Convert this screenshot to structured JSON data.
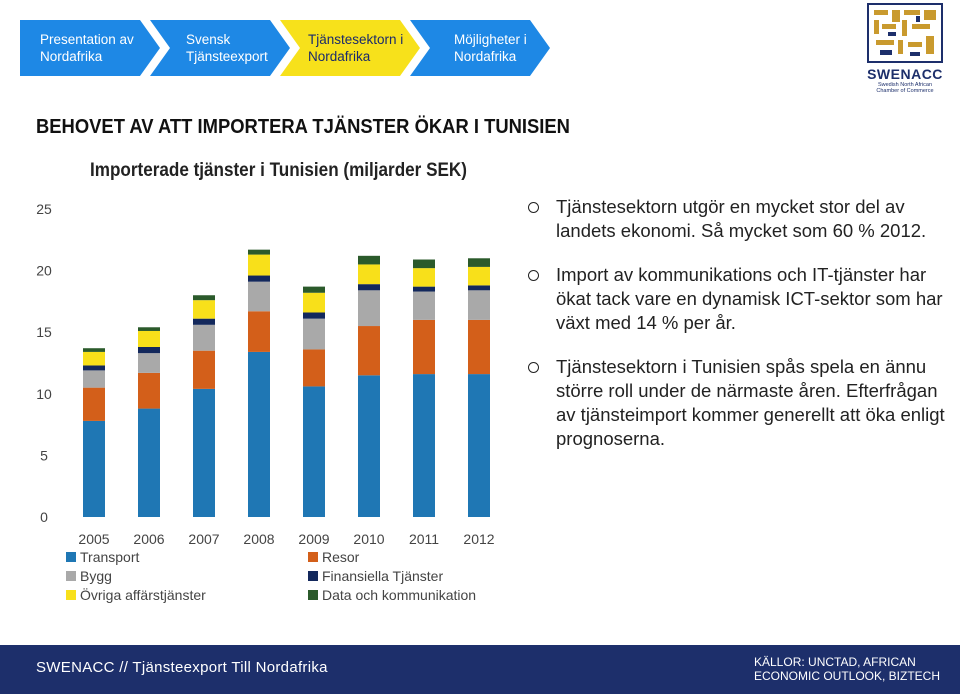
{
  "nav": {
    "items": [
      {
        "label": "Presentation av\nNordafrika",
        "active": false
      },
      {
        "label": "Svensk\nTjänsteexport",
        "active": false
      },
      {
        "label": "Tjänstesektorn i\nNordafrika",
        "active": true
      },
      {
        "label": "Möjligheter i\nNordafrika",
        "active": false
      }
    ],
    "colors": {
      "inactive": "#1e88e5",
      "active": "#f7e11b"
    }
  },
  "logo": {
    "name": "SWENACC",
    "subtitle": "Swedish North African Chamber of Commerce",
    "color": "#1d2f6b"
  },
  "heading": "BEHOVET AV ATT IMPORTERA TJÄNSTER ÖKAR I TUNISIEN",
  "chart_data": {
    "type": "bar",
    "stacked": true,
    "title": "Importerade tjänster i Tunisien (miljarder SEK)",
    "categories": [
      "2005",
      "2006",
      "2007",
      "2008",
      "2009",
      "2010",
      "2011",
      "2012"
    ],
    "ylim": [
      0,
      25
    ],
    "yticks": [
      "0",
      "5",
      "10",
      "15",
      "20",
      "25"
    ],
    "grid": false,
    "legend_position": "bottom",
    "series": [
      {
        "name": "Transport",
        "color": "#1f77b4",
        "values": [
          7.8,
          8.8,
          10.4,
          13.4,
          10.6,
          11.5,
          11.6,
          11.6
        ]
      },
      {
        "name": "Resor",
        "color": "#d35f1a",
        "values": [
          2.7,
          2.9,
          3.1,
          3.3,
          3.0,
          4.0,
          4.4,
          4.4
        ]
      },
      {
        "name": "Bygg",
        "color": "#a9a9a9",
        "values": [
          1.4,
          1.6,
          2.1,
          2.4,
          2.5,
          2.9,
          2.3,
          2.4
        ]
      },
      {
        "name": "Finansiella Tjänster",
        "color": "#13285c",
        "values": [
          0.4,
          0.5,
          0.5,
          0.5,
          0.5,
          0.5,
          0.4,
          0.4
        ]
      },
      {
        "name": "Övriga affärstjänster",
        "color": "#f8e01a",
        "values": [
          1.1,
          1.3,
          1.5,
          1.7,
          1.6,
          1.6,
          1.5,
          1.5
        ]
      },
      {
        "name": "Data och kommunikation",
        "color": "#2b5a2b",
        "values": [
          0.3,
          0.3,
          0.4,
          0.4,
          0.5,
          0.7,
          0.7,
          0.7
        ]
      }
    ],
    "legend_order": [
      "Transport",
      "Resor",
      "Bygg",
      "Finansiella Tjänster",
      "Övriga affärstjänster",
      "Data och kommunikation"
    ]
  },
  "bullets": [
    "Tjänstesektorn utgör en mycket stor del av landets ekonomi. Så mycket som 60 % 2012.",
    "Import av kommunikations och IT-tjänster har ökat tack vare en dynamisk ICT-sektor som har växt med 14 % per år.",
    "Tjänstesektorn i Tunisien spås spela en ännu större roll under de närmaste åren. Efterfrågan av tjänsteimport kommer generellt att öka enligt prognoserna."
  ],
  "footer": {
    "left": "SWENACC // Tjänsteexport Till Nordafrika",
    "right_line1": "KÄLLOR: UNCTAD, AFRICAN",
    "right_line2": "ECONOMIC OUTLOOK, BIZTECH"
  }
}
